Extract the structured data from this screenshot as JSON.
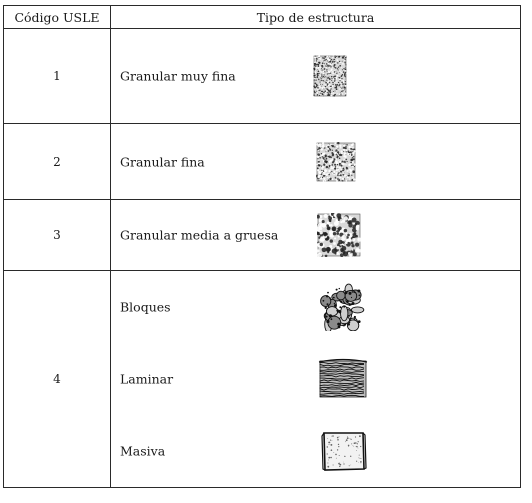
{
  "table": {
    "headers": [
      "Código USLE",
      "Tipo de estructura"
    ],
    "rows": [
      {
        "code": "1",
        "items": [
          {
            "label": "Granular muy fina",
            "icon": "granular-very-fine-texture-icon"
          }
        ]
      },
      {
        "code": "2",
        "items": [
          {
            "label": "Granular fina",
            "icon": "granular-fine-texture-icon"
          }
        ]
      },
      {
        "code": "3",
        "items": [
          {
            "label": "Granular media a gruesa",
            "icon": "granular-medium-coarse-texture-icon"
          }
        ]
      },
      {
        "code": "4",
        "items": [
          {
            "label": "Bloques",
            "icon": "blocky-texture-icon"
          },
          {
            "label": "Laminar",
            "icon": "platy-texture-icon"
          },
          {
            "label": "Masiva",
            "icon": "massive-texture-icon"
          }
        ]
      }
    ]
  }
}
